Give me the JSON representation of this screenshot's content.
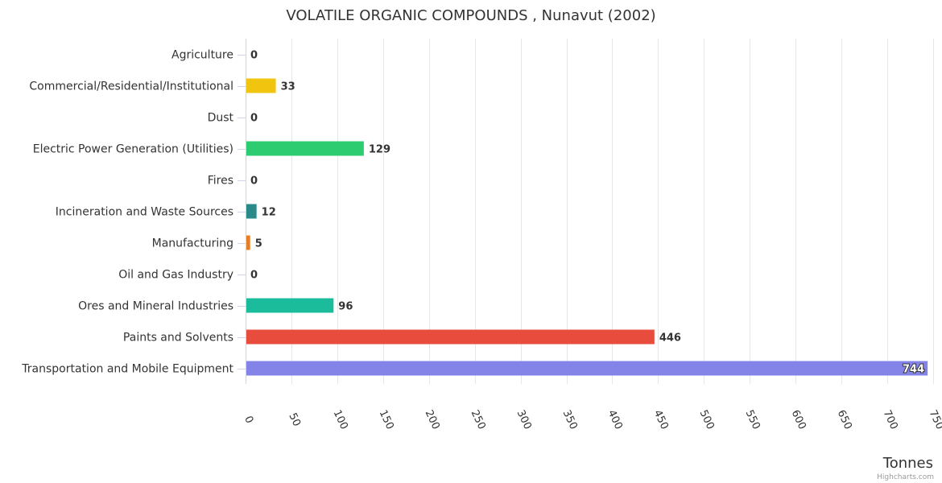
{
  "chart_data": {
    "type": "bar",
    "orientation": "horizontal",
    "title": "VOLATILE ORGANIC COMPOUNDS , Nunavut (2002)",
    "xlabel": "",
    "ylabel": "Tonnes",
    "credits": "Highcharts.com",
    "xlim": [
      0,
      750
    ],
    "tick_step": 50,
    "grid": true,
    "categories": [
      "Agriculture",
      "Commercial/Residential/Institutional",
      "Dust",
      "Electric Power Generation (Utilities)",
      "Fires",
      "Incineration and Waste Sources",
      "Manufacturing",
      "Oil and Gas Industry",
      "Ores and Mineral Industries",
      "Paints and Solvents",
      "Transportation and Mobile Equipment"
    ],
    "values": [
      0,
      33,
      0,
      129,
      0,
      12,
      5,
      0,
      96,
      446,
      744
    ],
    "colors": [
      "#7cb5ec",
      "#f1c40f",
      "#7cb5ec",
      "#2ecc71",
      "#7cb5ec",
      "#2a8a8a",
      "#e67e22",
      "#7cb5ec",
      "#1abc9c",
      "#e74c3c",
      "#8484e8"
    ]
  }
}
